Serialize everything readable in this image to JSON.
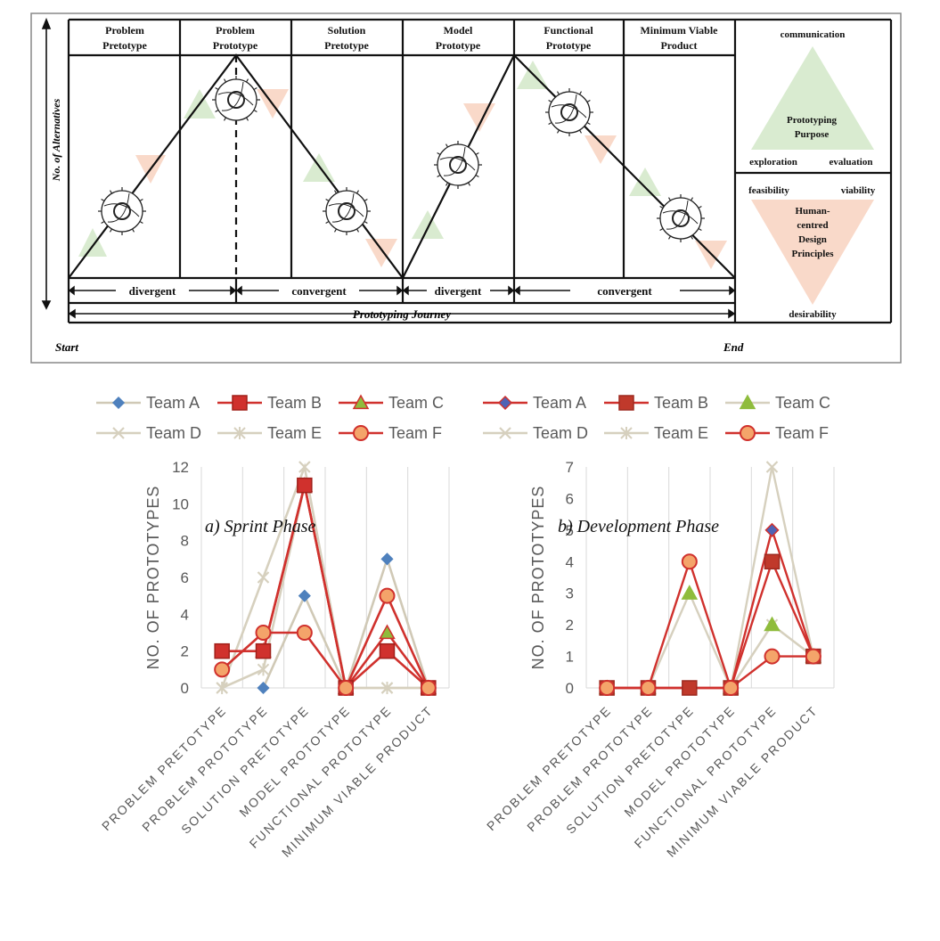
{
  "diagram": {
    "y_axis_label": "No. of Alternatives",
    "start_label": "Start",
    "end_label": "End",
    "stages": [
      {
        "line1": "Problem",
        "line2": "Pretotype"
      },
      {
        "line1": "Problem",
        "line2": "Prototype"
      },
      {
        "line1": "Solution",
        "line2": "Pretotype"
      },
      {
        "line1": "Model",
        "line2": "Prototype"
      },
      {
        "line1": "Functional",
        "line2": "Prototype"
      },
      {
        "line1": "Minimum Viable",
        "line2": "Product"
      }
    ],
    "phases": [
      "divergent",
      "convergent",
      "divergent",
      "convergent"
    ],
    "journey_label": "Prototyping Journey",
    "purpose": {
      "top": "communication",
      "center_line1": "Prototyping",
      "center_line2": "Purpose",
      "left": "exploration",
      "right": "evaluation"
    },
    "principles": {
      "left": "feasibility",
      "right": "viability",
      "center_line1": "Human-",
      "center_line2": "centred",
      "center_line3": "Design",
      "center_line4": "Principles",
      "bottom": "desirability"
    },
    "colors": {
      "green": "#d9ebd0",
      "salmon": "#f9d9c9"
    }
  },
  "chart_data": [
    {
      "type": "line",
      "title": "",
      "ylabel": "NO. OF PROTOTYPES",
      "xlabel": "",
      "categories": [
        "PROBLEM PRETOTYPE",
        "PROBLEM PROTOTYPE",
        "SOLUTION PRETOTYPE",
        "MODEL PROTOTYPE",
        "FUNCTIONAL PROTOTYPE",
        "MINIMUM VIABLE PRODUCT"
      ],
      "ylim": [
        0,
        12
      ],
      "yticks": [
        "0",
        "2",
        "4",
        "6",
        "8",
        "10",
        "12"
      ],
      "grid": true,
      "legend_position": "top",
      "caption": "a) Sprint Phase",
      "series": [
        {
          "name": "Team A",
          "values": [
            null,
            0,
            5,
            0,
            7,
            0
          ]
        },
        {
          "name": "Team B",
          "values": [
            2,
            2,
            11,
            0,
            2,
            0
          ]
        },
        {
          "name": "Team C",
          "values": [
            null,
            2,
            11,
            0,
            3,
            0
          ]
        },
        {
          "name": "Team D",
          "values": [
            0,
            6,
            12,
            0,
            0,
            0
          ]
        },
        {
          "name": "Team E",
          "values": [
            0,
            1,
            11,
            0,
            0,
            0
          ]
        },
        {
          "name": "Team F",
          "values": [
            1,
            3,
            3,
            0,
            5,
            0
          ]
        }
      ]
    },
    {
      "type": "line",
      "title": "",
      "ylabel": "NO. OF PROTOTYPES",
      "xlabel": "",
      "categories": [
        "PROBLEM PRETOTYPE",
        "PROBLEM PROTOTYPE",
        "SOLUTION PRETOTYPE",
        "MODEL PROTOTYPE",
        "FUNCTIONAL PROTOTYPE",
        "MINIMUM VIABLE PRODUCT"
      ],
      "ylim": [
        0,
        7
      ],
      "yticks": [
        "0",
        "1",
        "2",
        "3",
        "4",
        "5",
        "6",
        "7"
      ],
      "grid": true,
      "legend_position": "top",
      "caption": "b) Development Phase",
      "series": [
        {
          "name": "Team A",
          "values": [
            0,
            0,
            0,
            0,
            5,
            1
          ]
        },
        {
          "name": "Team B",
          "values": [
            0,
            0,
            0,
            0,
            4,
            1
          ]
        },
        {
          "name": "Team C",
          "values": [
            0,
            0,
            3,
            0,
            2,
            1
          ]
        },
        {
          "name": "Team D",
          "values": [
            0,
            0,
            0,
            0,
            7,
            1
          ]
        },
        {
          "name": "Team E",
          "values": [
            0,
            0,
            0,
            0,
            2,
            1
          ]
        },
        {
          "name": "Team F",
          "values": [
            0,
            0,
            4,
            0,
            1,
            1
          ]
        }
      ]
    }
  ]
}
